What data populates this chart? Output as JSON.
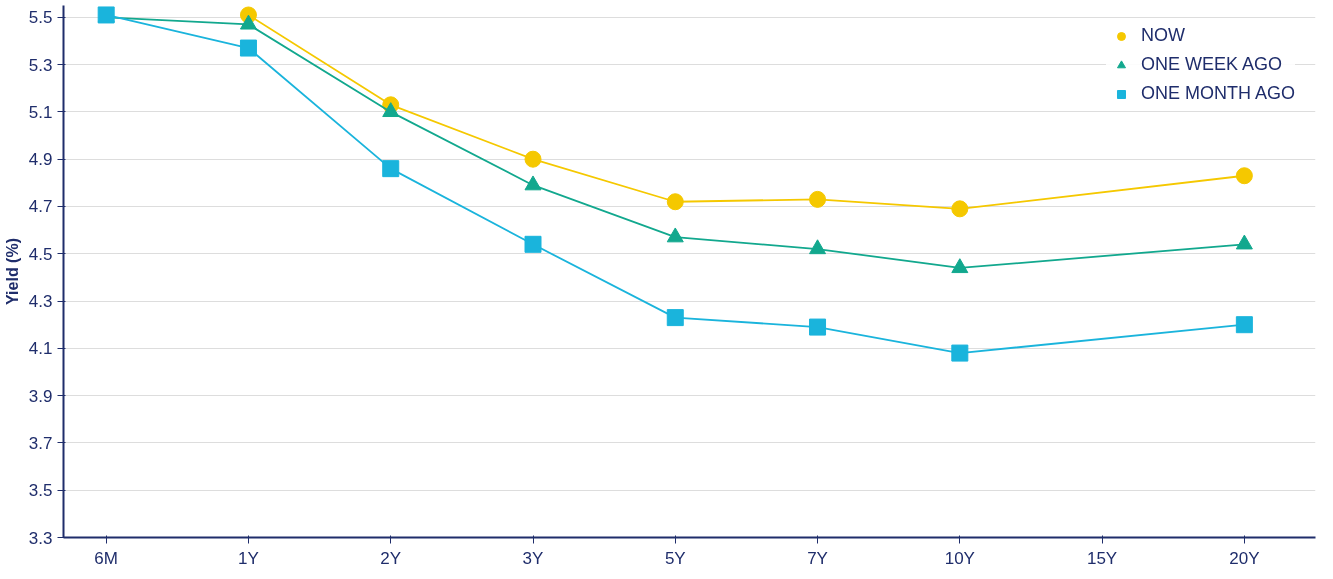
{
  "chart_data": {
    "type": "line",
    "ylabel": "Yield (%)",
    "categories": [
      "6M",
      "1Y",
      "2Y",
      "3Y",
      "5Y",
      "7Y",
      "10Y",
      "15Y",
      "20Y"
    ],
    "series": [
      {
        "name": "NOW",
        "color": "#f5c800",
        "marker": "circle",
        "values": [
          null,
          5.51,
          5.13,
          4.9,
          4.72,
          4.73,
          4.69,
          null,
          4.83
        ]
      },
      {
        "name": "ONE WEEK AGO",
        "color": "#12a88e",
        "marker": "triangle",
        "values": [
          5.5,
          5.47,
          5.1,
          4.79,
          4.57,
          4.52,
          4.44,
          null,
          4.54
        ]
      },
      {
        "name": "ONE MONTH AGO",
        "color": "#1ab4dc",
        "marker": "square",
        "values": [
          5.51,
          5.37,
          4.86,
          4.54,
          4.23,
          4.19,
          4.08,
          null,
          4.2
        ]
      }
    ],
    "ylim": [
      3.3,
      5.55
    ],
    "yticks": [
      {
        "value": 3.3,
        "label": "3.3"
      },
      {
        "value": 3.5,
        "label": "3.5"
      },
      {
        "value": 3.7,
        "label": "3.7"
      },
      {
        "value": 3.9,
        "label": "3.9"
      },
      {
        "value": 4.1,
        "label": "4.1"
      },
      {
        "value": 4.3,
        "label": "4.3"
      },
      {
        "value": 4.5,
        "label": "4.5"
      },
      {
        "value": 4.7,
        "label": "4.7"
      },
      {
        "value": 4.9,
        "label": "4.9"
      },
      {
        "value": 5.1,
        "label": "5.1"
      },
      {
        "value": 5.3,
        "label": "5.3"
      },
      {
        "value": 5.5,
        "label": "5.5"
      }
    ],
    "grid": "y",
    "legend": "top right",
    "line_style": "solid"
  }
}
